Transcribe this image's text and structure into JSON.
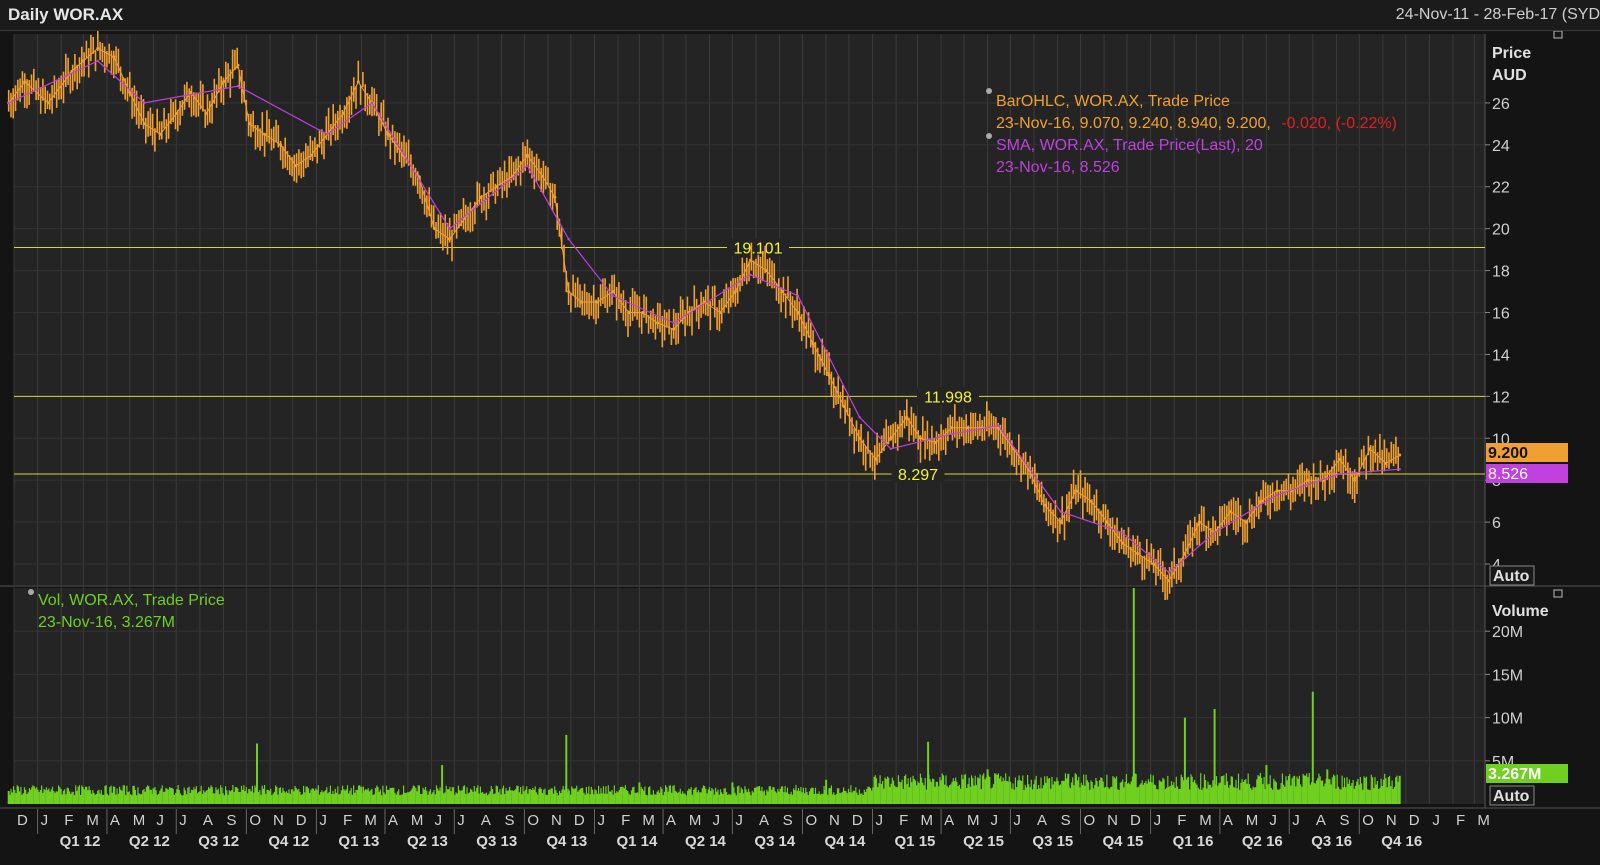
{
  "header": {
    "title": "Daily WOR.AX",
    "date_range": "24-Nov-11 - 28-Feb-17 (SYD"
  },
  "price_panel": {
    "axis_title": "Price",
    "axis_unit": "AUD",
    "auto_label": "Auto",
    "legend": {
      "ohlc_title": "BarOHLC, WOR.AX, Trade Price",
      "ohlc_values": "23-Nov-16, 9.070, 9.240, 8.940, 9.200,",
      "ohlc_change": "-0.020, (-0.22%)",
      "sma_title": "SMA, WOR.AX, Trade Price(Last),  20",
      "sma_values": "23-Nov-16, 8.526"
    },
    "last_price_label": "9.200",
    "last_sma_label": "8.526",
    "colors": {
      "price": "#f0a030",
      "sma": "#c040e0",
      "hline": "#d8d830",
      "down": "#e02020"
    }
  },
  "volume_panel": {
    "axis_title": "Volume",
    "auto_label": "Auto",
    "legend_title": "Vol, WOR.AX, Trade Price",
    "legend_values": "23-Nov-16, 3.267M",
    "last_volume_label": "3.267M",
    "color": "#6fd020"
  },
  "time_axis": {
    "months": [
      "D",
      "J",
      "F",
      "M",
      "A",
      "M",
      "J",
      "J",
      "A",
      "S",
      "O",
      "N",
      "D",
      "J",
      "F",
      "M",
      "A",
      "M",
      "J",
      "J",
      "A",
      "S",
      "O",
      "N",
      "D",
      "J",
      "F",
      "M",
      "A",
      "M",
      "J",
      "J",
      "A",
      "S",
      "O",
      "N",
      "D",
      "J",
      "F",
      "M",
      "A",
      "M",
      "J",
      "J",
      "A",
      "S",
      "O",
      "N",
      "D",
      "J",
      "F",
      "M",
      "A",
      "M",
      "J",
      "J",
      "A",
      "S",
      "O",
      "N",
      "D",
      "J",
      "F",
      "M",
      "A",
      "M",
      "J",
      "J",
      "A",
      "S",
      "O",
      "N",
      "D",
      "J",
      "F"
    ],
    "quarters": [
      "Q1 12",
      "Q2 12",
      "Q3 12",
      "Q4 12",
      "Q1 13",
      "Q2 13",
      "Q3 13",
      "Q4 13",
      "Q1 14",
      "Q2 14",
      "Q3 14",
      "Q4 14",
      "Q1 15",
      "Q2 15",
      "Q3 15",
      "Q4 15",
      "Q1 16",
      "Q2 16",
      "Q3 16",
      "Q4 16"
    ]
  },
  "chart_data": [
    {
      "type": "line",
      "title": "BarOHLC, WOR.AX, Trade Price",
      "ylabel": "Price AUD",
      "ylim": [
        3,
        29
      ],
      "yticks": [
        4,
        6,
        8,
        10,
        12,
        14,
        16,
        18,
        20,
        22,
        24,
        26
      ],
      "x": [
        "2011-11-24",
        "2011-12-15",
        "2012-01-15",
        "2012-02-15",
        "2012-03-01",
        "2012-03-20",
        "2012-04-10",
        "2012-05-01",
        "2012-05-20",
        "2012-06-10",
        "2012-07-01",
        "2012-07-20",
        "2012-08-10",
        "2012-09-01",
        "2012-09-20",
        "2012-10-05",
        "2012-10-25",
        "2012-11-15",
        "2012-12-05",
        "2012-12-25",
        "2013-01-15",
        "2013-02-05",
        "2013-02-25",
        "2013-03-15",
        "2013-04-05",
        "2013-04-25",
        "2013-05-15",
        "2013-06-05",
        "2013-06-25",
        "2013-07-15",
        "2013-08-05",
        "2013-08-25",
        "2013-09-15",
        "2013-10-05",
        "2013-10-25",
        "2013-11-10",
        "2013-11-28",
        "2013-12-15",
        "2014-01-05",
        "2014-01-25",
        "2014-02-15",
        "2014-03-05",
        "2014-03-25",
        "2014-04-15",
        "2014-05-05",
        "2014-05-25",
        "2014-06-15",
        "2014-07-05",
        "2014-07-25",
        "2014-08-15",
        "2014-09-05",
        "2014-09-25",
        "2014-10-15",
        "2014-11-05",
        "2014-11-25",
        "2014-12-15",
        "2015-01-05",
        "2015-01-25",
        "2015-02-15",
        "2015-03-05",
        "2015-03-25",
        "2015-04-15",
        "2015-05-05",
        "2015-05-25",
        "2015-06-15",
        "2015-07-05",
        "2015-07-25",
        "2015-08-15",
        "2015-09-05",
        "2015-09-25",
        "2015-10-15",
        "2015-11-05",
        "2015-11-25",
        "2015-12-15",
        "2016-01-05",
        "2016-01-25",
        "2016-02-15",
        "2016-03-05",
        "2016-03-25",
        "2016-04-15",
        "2016-05-05",
        "2016-05-25",
        "2016-06-15",
        "2016-07-05",
        "2016-07-25",
        "2016-08-15",
        "2016-09-05",
        "2016-09-25",
        "2016-10-15",
        "2016-11-05",
        "2016-11-23"
      ],
      "series": [
        {
          "name": "BarOHLC, WOR.AX, Trade Price",
          "values": [
            26.0,
            27.0,
            26.0,
            27.5,
            28.0,
            28.6,
            28.2,
            26.5,
            25.0,
            24.5,
            25.5,
            26.5,
            25.5,
            27.0,
            27.8,
            25.0,
            24.5,
            24.0,
            23.0,
            23.5,
            24.5,
            25.5,
            27.0,
            26.0,
            24.5,
            23.5,
            22.5,
            20.0,
            19.5,
            20.5,
            21.5,
            22.0,
            22.5,
            23.5,
            22.5,
            21.5,
            17.0,
            16.5,
            16.5,
            17.0,
            16.0,
            16.0,
            15.5,
            15.2,
            16.0,
            16.5,
            16.0,
            17.0,
            18.5,
            18.0,
            17.0,
            16.0,
            14.5,
            13.0,
            11.5,
            10.0,
            9.0,
            10.0,
            11.0,
            10.0,
            9.8,
            10.5,
            10.5,
            10.5,
            10.5,
            9.5,
            8.5,
            6.8,
            6.0,
            7.5,
            7.0,
            6.0,
            5.0,
            4.5,
            4.0,
            3.2,
            4.5,
            6.0,
            5.5,
            6.5,
            6.0,
            7.0,
            7.5,
            7.5,
            8.0,
            8.0,
            9.0,
            8.0,
            9.5,
            8.8,
            9.2
          ]
        }
      ]
    },
    {
      "type": "line",
      "title": "SMA, WOR.AX, Trade Price(Last),  20",
      "x": [
        "2011-11-24",
        "2012-03-20",
        "2012-05-20",
        "2012-09-20",
        "2013-01-15",
        "2013-03-15",
        "2013-06-25",
        "2013-10-05",
        "2013-11-28",
        "2014-01-25",
        "2014-04-15",
        "2014-07-25",
        "2014-09-25",
        "2014-12-15",
        "2015-01-25",
        "2015-04-15",
        "2015-06-15",
        "2015-09-05",
        "2015-11-25",
        "2016-01-25",
        "2016-03-25",
        "2016-06-15",
        "2016-09-05",
        "2016-11-23"
      ],
      "series": [
        {
          "name": "SMA, WOR.AX, Trade Price(Last),  20",
          "values": [
            26.0,
            28.0,
            26.0,
            26.8,
            24.5,
            26.0,
            20.0,
            23.0,
            19.5,
            16.8,
            15.5,
            17.8,
            16.8,
            11.0,
            9.5,
            10.2,
            10.6,
            6.5,
            5.5,
            3.6,
            5.5,
            7.3,
            8.3,
            8.526
          ]
        }
      ]
    },
    {
      "type": "line",
      "title": "Horizontal levels",
      "series": [
        {
          "name": "19.101",
          "values": [
            19.101
          ]
        },
        {
          "name": "11.998",
          "values": [
            11.998
          ]
        },
        {
          "name": "8.297",
          "values": [
            8.297
          ]
        }
      ]
    },
    {
      "type": "bar",
      "title": "Vol, WOR.AX, Trade Price",
      "ylabel": "Volume",
      "ylim": [
        0,
        25
      ],
      "yticks": [
        "5M",
        "10M",
        "15M",
        "20M"
      ],
      "x": [
        "2011-11-24",
        "2012-06-01",
        "2012-10-15",
        "2013-03-01",
        "2013-06-15",
        "2013-11-25",
        "2014-03-01",
        "2014-07-01",
        "2014-11-01",
        "2015-03-15",
        "2015-06-01",
        "2015-09-15",
        "2015-12-10",
        "2016-02-15",
        "2016-03-25",
        "2016-06-01",
        "2016-08-01",
        "2016-08-20",
        "2016-11-23"
      ],
      "series": [
        {
          "name": "Vol, WOR.AX, Trade Price",
          "values": [
            1.5,
            1.8,
            7.0,
            2.0,
            4.5,
            8.0,
            2.5,
            2.5,
            2.8,
            7.2,
            4.0,
            3.5,
            25.0,
            10.0,
            11.0,
            4.5,
            13.0,
            4.0,
            3.267
          ]
        }
      ]
    }
  ]
}
